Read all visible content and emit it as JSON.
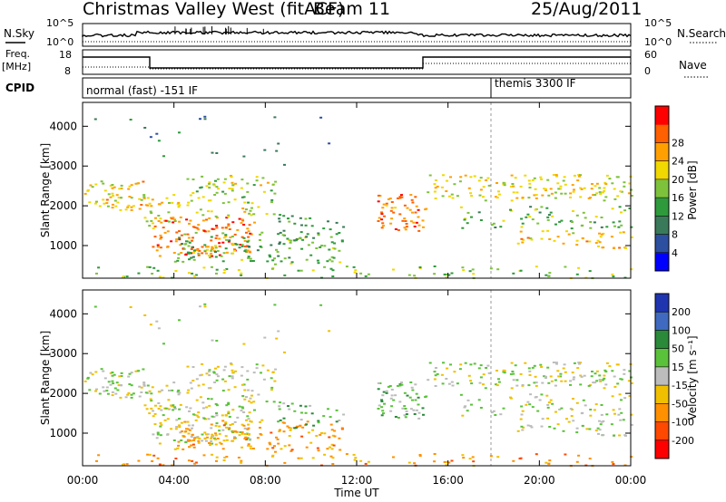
{
  "header": {
    "title": "Christmas Valley West (fitACF)",
    "beam": "Beam 11",
    "date": "25/Aug/2011"
  },
  "side_labels": {
    "nsky": "N.Sky",
    "freq_line1": "Freq.",
    "freq_line2": "[MHz]",
    "cpid": "CPID",
    "nsearch": "N.Search",
    "nave": "Nave"
  },
  "panel_ticks": {
    "noise_left_top": "10^5",
    "noise_left_bottom": "10^0",
    "noise_right_top": "10^5",
    "noise_right_bottom": "10^0",
    "freq_top": "18",
    "freq_bottom": "8",
    "nave_top": "60",
    "nave_bottom": "0"
  },
  "cpid_labels": {
    "first": "normal (fast) -151 IF",
    "second": "themis 3300 IF"
  },
  "chart_data": [
    {
      "type": "heatmap",
      "title": "Power",
      "xlabel": "Time UT",
      "ylabel": "Slant Range [km]",
      "x_ticks": [
        "00:00",
        "04:00",
        "08:00",
        "12:00",
        "16:00",
        "20:00",
        "00:00"
      ],
      "xlim_hours": [
        0,
        24
      ],
      "y_ticks": [
        "1000",
        "2000",
        "3000",
        "4000"
      ],
      "ylim_km": [
        180,
        4600
      ],
      "colorbar_label": "Power [dB]",
      "colorbar_ticks": [
        "4",
        "8",
        "12",
        "16",
        "20",
        "24",
        "28"
      ],
      "colorbar_colors": [
        "#0000ff",
        "#2d4fa0",
        "#3a7a5a",
        "#2e9a3c",
        "#7ec23c",
        "#f0d800",
        "#ffa000",
        "#ff6000",
        "#ff0000"
      ]
    },
    {
      "type": "heatmap",
      "title": "Velocity",
      "xlabel": "Time UT",
      "ylabel": "Slant Range [km]",
      "x_ticks": [
        "00:00",
        "04:00",
        "08:00",
        "12:00",
        "16:00",
        "20:00",
        "00:00"
      ],
      "xlim_hours": [
        0,
        24
      ],
      "y_ticks": [
        "1000",
        "2000",
        "3000",
        "4000"
      ],
      "ylim_km": [
        180,
        4600
      ],
      "colorbar_label": "Velocity [m s⁻¹]",
      "colorbar_ticks": [
        "200",
        "100",
        "50",
        "15",
        "-15",
        "-50",
        "-100",
        "-200"
      ],
      "colorbar_colors": [
        "#1f35b0",
        "#3f6ac0",
        "#2a8a3a",
        "#5ac23a",
        "#bcbcbc",
        "#f0c000",
        "#ff9000",
        "#ff4800",
        "#ff0000"
      ]
    }
  ],
  "x_axis_label": "Time UT",
  "y_axis_label_top": "Slant Range [km]",
  "y_axis_label_bottom": "Slant Range [km]",
  "colorbar_label_top": "Power [dB]",
  "colorbar_label_bottom": "Velocity [m s⁻¹]"
}
